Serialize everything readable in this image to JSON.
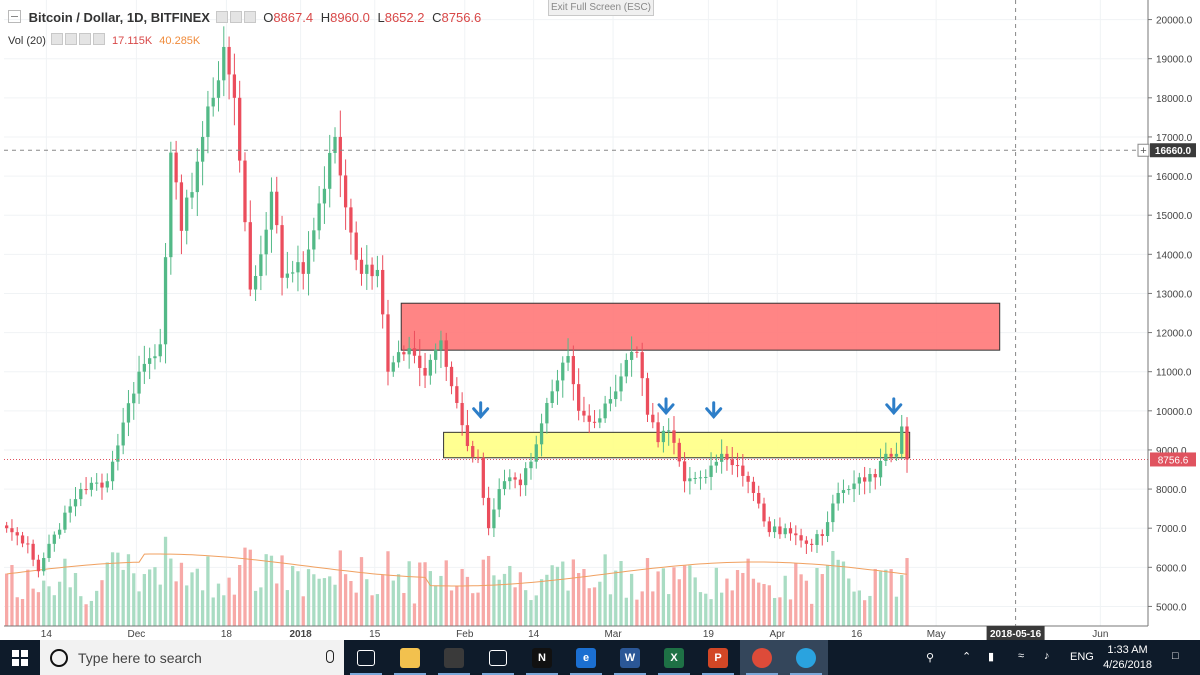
{
  "legend": {
    "symbol": "Bitcoin / Dollar, 1D, BITFINEX",
    "open_label": "O",
    "open": "8867.4",
    "high_label": "H",
    "high": "8960.0",
    "low_label": "L",
    "low": "8652.2",
    "close_label": "C",
    "close": "8756.6",
    "vol_label": "Vol (20)",
    "vol_value": "17.115K",
    "vol_ma": "40.285K"
  },
  "exit_fullscreen": "Exit Full Screen (ESC)",
  "chart_data": {
    "type": "candlestick",
    "title": "Bitcoin / Dollar, 1D, BITFINEX",
    "x_start": "2017-11-06",
    "x_end": "2018-06-10",
    "ylim": [
      4500,
      20500
    ],
    "y_ticks": [
      "20000.0",
      "19000.0",
      "18000.0",
      "17000.0",
      "16000.0",
      "15000.0",
      "14000.0",
      "13000.0",
      "12000.0",
      "11000.0",
      "10000.0",
      "9000.0",
      "8000.0",
      "7000.0",
      "6000.0",
      "5000.0"
    ],
    "x_ticks": [
      {
        "date": "2017-11-14",
        "label": "14"
      },
      {
        "date": "2017-12-01",
        "label": "Dec"
      },
      {
        "date": "2017-12-18",
        "label": "18"
      },
      {
        "date": "2018-01-01",
        "label": "2018",
        "bold": true
      },
      {
        "date": "2018-01-15",
        "label": "15"
      },
      {
        "date": "2018-02-01",
        "label": "Feb"
      },
      {
        "date": "2018-02-14",
        "label": "14"
      },
      {
        "date": "2018-03-01",
        "label": "Mar"
      },
      {
        "date": "2018-03-19",
        "label": "19"
      },
      {
        "date": "2018-04-01",
        "label": "Apr"
      },
      {
        "date": "2018-04-16",
        "label": "16"
      },
      {
        "date": "2018-05-01",
        "label": "May"
      },
      {
        "date": "2018-06-01",
        "label": "Jun"
      }
    ],
    "keypoints": [
      [
        "2017-11-06",
        7000
      ],
      [
        "2017-11-10",
        6600
      ],
      [
        "2017-11-12",
        5900
      ],
      [
        "2017-11-14",
        6600
      ],
      [
        "2017-11-20",
        8000
      ],
      [
        "2017-11-25",
        8200
      ],
      [
        "2017-11-28",
        9700
      ],
      [
        "2017-12-01",
        11000
      ],
      [
        "2017-12-05",
        11700
      ],
      [
        "2017-12-07",
        16600
      ],
      [
        "2017-12-09",
        14600
      ],
      [
        "2017-12-13",
        17000
      ],
      [
        "2017-12-15",
        18000
      ],
      [
        "2017-12-17",
        19300
      ],
      [
        "2017-12-19",
        18000
      ],
      [
        "2017-12-22",
        13100
      ],
      [
        "2017-12-24",
        14000
      ],
      [
        "2017-12-26",
        15600
      ],
      [
        "2017-12-28",
        13400
      ],
      [
        "2017-12-31",
        13800
      ],
      [
        "2018-01-01",
        13500
      ],
      [
        "2018-01-04",
        15300
      ],
      [
        "2018-01-07",
        17000
      ],
      [
        "2018-01-09",
        15200
      ],
      [
        "2018-01-12",
        13500
      ],
      [
        "2018-01-15",
        13600
      ],
      [
        "2018-01-17",
        11000
      ],
      [
        "2018-01-19",
        11500
      ],
      [
        "2018-01-21",
        11600
      ],
      [
        "2018-01-24",
        10900
      ],
      [
        "2018-01-27",
        11800
      ],
      [
        "2018-01-30",
        10200
      ],
      [
        "2018-02-01",
        9100
      ],
      [
        "2018-02-03",
        8800
      ],
      [
        "2018-02-05",
        7000
      ],
      [
        "2018-02-07",
        8000
      ],
      [
        "2018-02-09",
        8300
      ],
      [
        "2018-02-11",
        8100
      ],
      [
        "2018-02-13",
        8700
      ],
      [
        "2018-02-16",
        10200
      ],
      [
        "2018-02-20",
        11400
      ],
      [
        "2018-02-22",
        10000
      ],
      [
        "2018-02-25",
        9700
      ],
      [
        "2018-02-28",
        10300
      ],
      [
        "2018-03-03",
        11300
      ],
      [
        "2018-03-05",
        11500
      ],
      [
        "2018-03-07",
        9900
      ],
      [
        "2018-03-09",
        9200
      ],
      [
        "2018-03-11",
        9500
      ],
      [
        "2018-03-14",
        8200
      ],
      [
        "2018-03-17",
        8300
      ],
      [
        "2018-03-19",
        8600
      ],
      [
        "2018-03-21",
        8900
      ],
      [
        "2018-03-24",
        8600
      ],
      [
        "2018-03-27",
        7900
      ],
      [
        "2018-03-30",
        6900
      ],
      [
        "2018-04-02",
        7000
      ],
      [
        "2018-04-06",
        6600
      ],
      [
        "2018-04-09",
        6800
      ],
      [
        "2018-04-12",
        7900
      ],
      [
        "2018-04-14",
        8000
      ],
      [
        "2018-04-16",
        8300
      ],
      [
        "2018-04-19",
        8300
      ],
      [
        "2018-04-21",
        8900
      ],
      [
        "2018-04-23",
        8900
      ],
      [
        "2018-04-24",
        9600
      ],
      [
        "2018-04-25",
        8757
      ]
    ],
    "last_price": 8756.6,
    "crosshair": {
      "date": "2018-05-16",
      "price": 16660.0,
      "date_label": "2018-05-16",
      "price_label": "16660.0"
    },
    "last_price_label": "8756.6",
    "zones": [
      {
        "name": "resistance",
        "from": "2018-01-20",
        "to": "2018-05-13",
        "low": 11550,
        "high": 12750,
        "color": "#ff7b7b"
      },
      {
        "name": "support",
        "from": "2018-01-28",
        "to": "2018-04-26",
        "low": 8800,
        "high": 9450,
        "color": "#ffff88"
      }
    ],
    "arrows": [
      {
        "date": "2018-02-04",
        "price": 9900
      },
      {
        "date": "2018-03-11",
        "price": 10000
      },
      {
        "date": "2018-03-20",
        "price": 9900
      },
      {
        "date": "2018-04-23",
        "price": 10000
      }
    ],
    "colors": {
      "up": "#53b987",
      "down": "#eb4d5c",
      "vol_up": "#a9dcc3",
      "vol_down": "#f7a9a7",
      "vol_ma": "#f0a060",
      "arrow": "#2d7ec8"
    }
  },
  "taskbar": {
    "search_placeholder": "Type here to search",
    "lang": "ENG",
    "time": "1:33 AM",
    "date": "4/26/2018",
    "apps": [
      {
        "name": "task-view",
        "label": "",
        "color": "#0e1b2a"
      },
      {
        "name": "file-explorer",
        "label": "",
        "color": "#f2c14e"
      },
      {
        "name": "store",
        "label": "",
        "color": "#3a3a3a"
      },
      {
        "name": "dropbox",
        "label": "",
        "color": "#0e1b2a"
      },
      {
        "name": "netflix",
        "label": "N",
        "color": "#111111"
      },
      {
        "name": "edge",
        "label": "e",
        "color": "#1b6fd1"
      },
      {
        "name": "word",
        "label": "W",
        "color": "#2b5797"
      },
      {
        "name": "excel",
        "label": "X",
        "color": "#1e7145"
      },
      {
        "name": "powerpoint",
        "label": "P",
        "color": "#d24726"
      },
      {
        "name": "chrome",
        "label": "",
        "color": "#dd4b39"
      },
      {
        "name": "telegram",
        "label": "",
        "color": "#2aa3df"
      }
    ]
  }
}
